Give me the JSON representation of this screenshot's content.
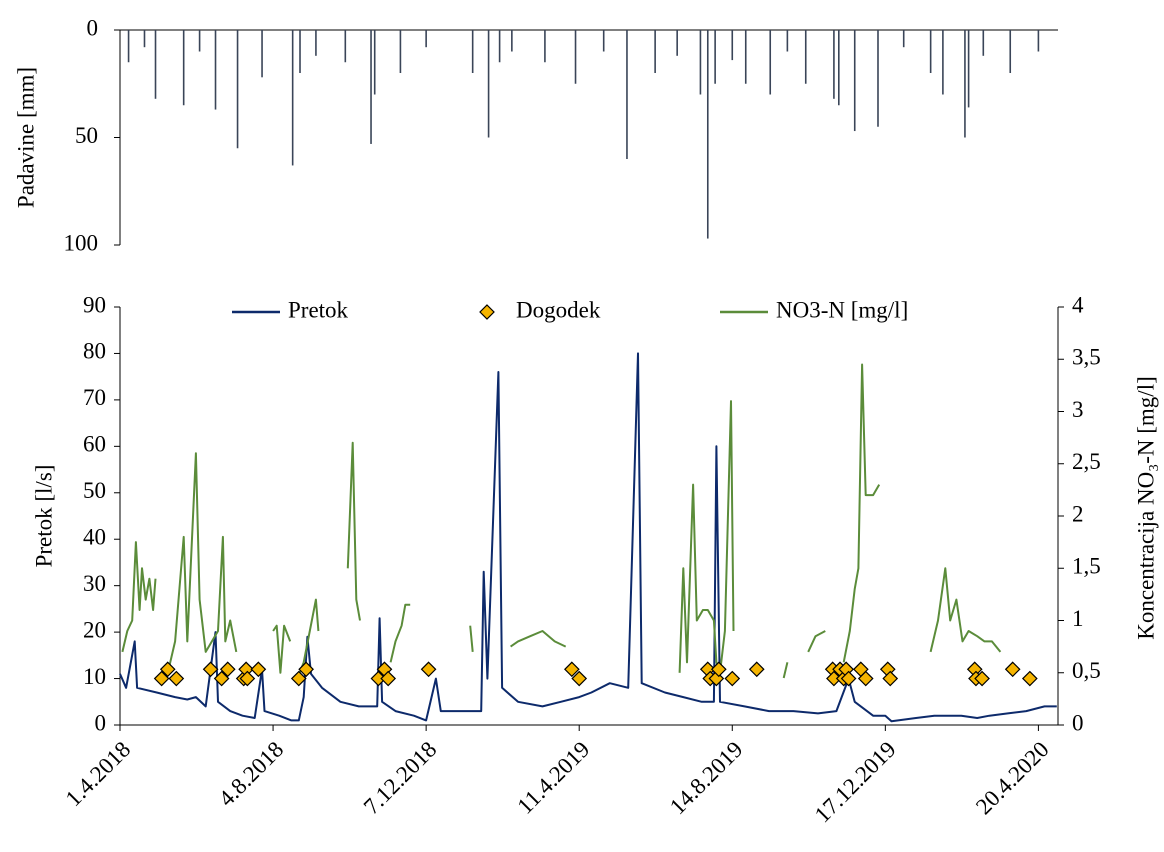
{
  "chart_data": [
    {
      "type": "bar",
      "ylabel": "Padavine [mm]",
      "color": "#3a4558",
      "y_inverted": true,
      "xlim": [
        0,
        766
      ],
      "ylim": [
        0,
        100
      ],
      "yticks": [
        0,
        50,
        100
      ],
      "x": [
        7,
        20,
        29,
        52,
        65,
        78,
        96,
        116,
        141,
        147,
        160,
        184,
        205,
        208,
        229,
        250,
        288,
        301,
        310,
        320,
        347,
        372,
        395,
        414,
        437,
        455,
        474,
        480,
        486,
        500,
        511,
        531,
        545,
        560,
        583,
        587,
        600,
        619,
        640,
        662,
        672,
        690,
        693,
        705,
        727,
        750
      ],
      "values": [
        15,
        8,
        32,
        35,
        10,
        37,
        55,
        22,
        63,
        20,
        12,
        15,
        53,
        30,
        20,
        8,
        20,
        50,
        15,
        10,
        15,
        25,
        10,
        60,
        20,
        12,
        30,
        97,
        25,
        14,
        25,
        30,
        10,
        25,
        32,
        35,
        47,
        45,
        8,
        20,
        30,
        50,
        36,
        12,
        20,
        10
      ]
    },
    {
      "type": "line",
      "ylabel": "Pretok [l/s]",
      "y2label": "Koncentracija NO₃-N [mg/l]",
      "legend": "top",
      "xlim": [
        0,
        766
      ],
      "ylim": [
        0,
        90
      ],
      "yticks": [
        0,
        10,
        20,
        30,
        40,
        50,
        60,
        70,
        80,
        90
      ],
      "y2lim": [
        0,
        4
      ],
      "y2ticks": [
        0,
        {
          "value": 0.5,
          "label": "0,5"
        },
        1,
        {
          "value": 1.5,
          "label": "1,5"
        },
        2,
        {
          "value": 2.5,
          "label": "2,5"
        },
        3,
        {
          "value": 3.5,
          "label": "3,5"
        },
        4
      ],
      "xticks": [
        {
          "value": 0,
          "label": "1.4.2018"
        },
        {
          "value": 125,
          "label": "4.8.2018"
        },
        {
          "value": 250,
          "label": "7.12.2018"
        },
        {
          "value": 375,
          "label": "11.4.2019"
        },
        {
          "value": 500,
          "label": "14.8.2019"
        },
        {
          "value": 625,
          "label": "17.12.2019"
        },
        {
          "value": 750,
          "label": "20.4.2020"
        }
      ],
      "series": [
        {
          "name": "Pretok",
          "type": "line",
          "color": "#0d2a6b",
          "x": [
            0,
            5,
            12,
            14,
            30,
            45,
            55,
            62,
            70,
            78,
            80,
            90,
            100,
            110,
            116,
            118,
            130,
            140,
            146,
            150,
            153,
            156,
            165,
            180,
            195,
            210,
            212,
            214,
            225,
            240,
            250,
            258,
            262,
            280,
            295,
            297,
            300,
            309,
            312,
            325,
            345,
            360,
            375,
            385,
            400,
            415,
            423,
            426,
            445,
            460,
            475,
            485,
            487,
            490,
            510,
            530,
            550,
            570,
            585,
            595,
            600,
            615,
            625,
            630,
            650,
            665,
            675,
            687,
            700,
            710,
            725,
            740,
            755,
            765
          ],
          "values": [
            11,
            8,
            18,
            8,
            7,
            6,
            5.5,
            6,
            4,
            20,
            5,
            3,
            2,
            1.5,
            12,
            3,
            2,
            1,
            1,
            6,
            19,
            11,
            8,
            5,
            4,
            4,
            23,
            5,
            3,
            2,
            1,
            10,
            3,
            3,
            3,
            33,
            10,
            76,
            8,
            5,
            4,
            5,
            6,
            7,
            9,
            8,
            80,
            9,
            7,
            6,
            5,
            5,
            60,
            5,
            4,
            3,
            3,
            2.5,
            3,
            10,
            5,
            2,
            2,
            0.8,
            1.5,
            2,
            2,
            2,
            1.5,
            2,
            2.5,
            3,
            4,
            4
          ]
        },
        {
          "name": "Dogodek",
          "type": "scatter",
          "color": "#f5b400",
          "x": [
            34,
            39,
            46,
            74,
            83,
            88,
            101,
            103,
            104,
            113,
            146,
            152,
            211,
            216,
            219,
            252,
            369,
            375,
            480,
            482,
            487,
            489,
            500,
            520,
            582,
            583,
            588,
            591,
            593,
            595,
            605,
            609,
            627,
            629,
            698,
            699,
            704,
            729,
            743
          ],
          "values": [
            10,
            12,
            10,
            12,
            10,
            12,
            10,
            12,
            10,
            12,
            10,
            12,
            10,
            12,
            10,
            12,
            12,
            10,
            12,
            10,
            10,
            12,
            10,
            12,
            12,
            10,
            12,
            10,
            12,
            10,
            12,
            10,
            12,
            10,
            12,
            10,
            10,
            12,
            10
          ]
        },
        {
          "name": "NO3-N [mg/l]",
          "type": "line",
          "axis": "y2",
          "color": "#5b8c3a",
          "x": [
            2,
            6,
            10,
            13,
            16,
            18,
            21,
            24,
            27,
            29,
            30,
            39,
            45,
            52,
            55,
            62,
            65,
            70,
            80,
            84,
            86,
            90,
            95,
            96,
            125,
            128,
            131,
            134,
            139,
            140,
            145,
            150,
            155,
            160,
            162,
            163,
            186,
            190,
            193,
            196,
            197,
            221,
            225,
            230,
            233,
            237,
            238,
            286,
            288,
            289,
            319,
            325,
            335,
            345,
            355,
            364,
            365,
            457,
            460,
            463,
            468,
            471,
            476,
            480,
            485,
            487,
            490,
            494,
            499,
            501,
            502,
            542,
            545,
            546,
            562,
            568,
            576,
            577,
            591,
            596,
            600,
            603,
            606,
            609,
            615,
            620,
            621,
            662,
            668,
            674,
            678,
            683,
            688,
            693,
            700,
            706,
            712,
            719
          ],
          "values": [
            0.7,
            0.9,
            1.0,
            1.75,
            1.1,
            1.5,
            1.2,
            1.4,
            1.1,
            1.4,
            null,
            0.5,
            0.8,
            1.8,
            0.8,
            2.6,
            1.2,
            0.7,
            0.9,
            1.8,
            0.8,
            1.0,
            0.7,
            null,
            0.9,
            0.95,
            0.5,
            0.95,
            0.8,
            null,
            0.45,
            0.6,
            0.9,
            1.2,
            0.9,
            null,
            1.5,
            2.7,
            1.2,
            1.0,
            null,
            0.6,
            0.8,
            0.95,
            1.15,
            1.15,
            null,
            0.95,
            0.7,
            null,
            0.75,
            0.8,
            0.85,
            0.9,
            0.8,
            0.75,
            null,
            0.5,
            1.5,
            0.6,
            2.3,
            1.0,
            1.1,
            1.1,
            1.0,
            0.6,
            0.5,
            0.9,
            3.1,
            0.9,
            null,
            0.45,
            0.6,
            null,
            0.7,
            0.85,
            0.9,
            null,
            0.6,
            0.9,
            1.3,
            1.5,
            3.45,
            2.2,
            2.2,
            2.3,
            null,
            0.7,
            1.0,
            1.5,
            1.0,
            1.2,
            0.8,
            0.9,
            0.85,
            0.8,
            0.8,
            0.7
          ]
        }
      ]
    }
  ]
}
